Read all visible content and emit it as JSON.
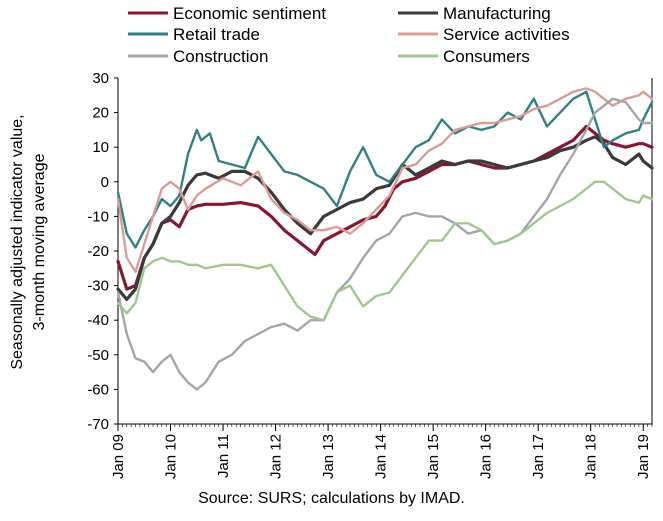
{
  "chart_data": {
    "type": "line",
    "ylabel": [
      "Seasonally adjusted indicator value,",
      "3-month moving average"
    ],
    "ylim": [
      -70,
      30
    ],
    "yticks": [
      -70,
      -60,
      -50,
      -40,
      -30,
      -20,
      -10,
      0,
      10,
      20,
      30
    ],
    "xlim": [
      "2009-01",
      "2019-03"
    ],
    "xticks": [
      {
        "x": "2009-01",
        "label": "Jan 09"
      },
      {
        "x": "2010-01",
        "label": "Jan 10"
      },
      {
        "x": "2011-01",
        "label": "Jan 11"
      },
      {
        "x": "2012-01",
        "label": "Jan 12"
      },
      {
        "x": "2013-01",
        "label": "Jan 13"
      },
      {
        "x": "2014-01",
        "label": "Jan 14"
      },
      {
        "x": "2015-01",
        "label": "Jan 15"
      },
      {
        "x": "2016-01",
        "label": "Jan 16"
      },
      {
        "x": "2017-01",
        "label": "Jan 17"
      },
      {
        "x": "2018-01",
        "label": "Jan 18"
      },
      {
        "x": "2019-01",
        "label": "Jan 19"
      }
    ],
    "grid": false,
    "legend": "top",
    "series": [
      {
        "name": "Economic sentiment",
        "color": "#8a1530",
        "width": 3.2,
        "points": [
          [
            "2009-01",
            -23
          ],
          [
            "2009-03",
            -31
          ],
          [
            "2009-05",
            -30
          ],
          [
            "2009-07",
            -22
          ],
          [
            "2009-09",
            -18
          ],
          [
            "2009-11",
            -12
          ],
          [
            "2010-01",
            -11
          ],
          [
            "2010-03",
            -13
          ],
          [
            "2010-05",
            -8
          ],
          [
            "2010-07",
            -7
          ],
          [
            "2010-09",
            -6.5
          ],
          [
            "2011-01",
            -6.5
          ],
          [
            "2011-05",
            -6
          ],
          [
            "2011-09",
            -7
          ],
          [
            "2011-12",
            -10
          ],
          [
            "2012-03",
            -14
          ],
          [
            "2012-06",
            -17
          ],
          [
            "2012-09",
            -20
          ],
          [
            "2012-10",
            -21
          ],
          [
            "2012-12",
            -17
          ],
          [
            "2013-03",
            -15
          ],
          [
            "2013-06",
            -13
          ],
          [
            "2013-09",
            -11
          ],
          [
            "2013-12",
            -10
          ],
          [
            "2014-02",
            -7
          ],
          [
            "2014-04",
            -2
          ],
          [
            "2014-06",
            0
          ],
          [
            "2014-09",
            1
          ],
          [
            "2014-12",
            3
          ],
          [
            "2015-03",
            5
          ],
          [
            "2015-06",
            5
          ],
          [
            "2015-09",
            6
          ],
          [
            "2015-12",
            5
          ],
          [
            "2016-03",
            4
          ],
          [
            "2016-06",
            4
          ],
          [
            "2016-09",
            5
          ],
          [
            "2016-12",
            6
          ],
          [
            "2017-03",
            8
          ],
          [
            "2017-06",
            10
          ],
          [
            "2017-09",
            12
          ],
          [
            "2017-12",
            16
          ],
          [
            "2018-02",
            14
          ],
          [
            "2018-04",
            12
          ],
          [
            "2018-06",
            11
          ],
          [
            "2018-09",
            10
          ],
          [
            "2018-12",
            11
          ],
          [
            "2019-01",
            11
          ],
          [
            "2019-03",
            10
          ]
        ]
      },
      {
        "name": "Manufacturing",
        "color": "#3a3a3a",
        "width": 3.2,
        "points": [
          [
            "2009-01",
            -31
          ],
          [
            "2009-03",
            -34
          ],
          [
            "2009-05",
            -31
          ],
          [
            "2009-07",
            -22
          ],
          [
            "2009-09",
            -18
          ],
          [
            "2009-11",
            -12
          ],
          [
            "2010-01",
            -10
          ],
          [
            "2010-03",
            -6
          ],
          [
            "2010-05",
            -1
          ],
          [
            "2010-07",
            2
          ],
          [
            "2010-09",
            2.5
          ],
          [
            "2010-12",
            1
          ],
          [
            "2011-03",
            3
          ],
          [
            "2011-06",
            3
          ],
          [
            "2011-09",
            1
          ],
          [
            "2011-12",
            -3
          ],
          [
            "2012-03",
            -8
          ],
          [
            "2012-06",
            -12
          ],
          [
            "2012-09",
            -15
          ],
          [
            "2012-12",
            -10
          ],
          [
            "2013-03",
            -8
          ],
          [
            "2013-06",
            -6
          ],
          [
            "2013-09",
            -5
          ],
          [
            "2013-12",
            -2
          ],
          [
            "2014-03",
            -1
          ],
          [
            "2014-06",
            5
          ],
          [
            "2014-09",
            2
          ],
          [
            "2014-12",
            4
          ],
          [
            "2015-03",
            6
          ],
          [
            "2015-06",
            5
          ],
          [
            "2015-09",
            6
          ],
          [
            "2015-12",
            6
          ],
          [
            "2016-03",
            5
          ],
          [
            "2016-06",
            4
          ],
          [
            "2016-09",
            5
          ],
          [
            "2016-12",
            6
          ],
          [
            "2017-03",
            7
          ],
          [
            "2017-06",
            9
          ],
          [
            "2017-09",
            10
          ],
          [
            "2017-12",
            12
          ],
          [
            "2018-02",
            13
          ],
          [
            "2018-04",
            11
          ],
          [
            "2018-06",
            7
          ],
          [
            "2018-09",
            5
          ],
          [
            "2018-12",
            8
          ],
          [
            "2019-01",
            6
          ],
          [
            "2019-03",
            4
          ]
        ]
      },
      {
        "name": "Retail trade",
        "color": "#2f8184",
        "width": 2.4,
        "points": [
          [
            "2009-01",
            -3
          ],
          [
            "2009-03",
            -15
          ],
          [
            "2009-05",
            -19
          ],
          [
            "2009-07",
            -14
          ],
          [
            "2009-09",
            -10
          ],
          [
            "2009-11",
            -5
          ],
          [
            "2010-01",
            -7
          ],
          [
            "2010-03",
            -4
          ],
          [
            "2010-05",
            8
          ],
          [
            "2010-07",
            15
          ],
          [
            "2010-08",
            12
          ],
          [
            "2010-10",
            14
          ],
          [
            "2010-12",
            6
          ],
          [
            "2011-03",
            5
          ],
          [
            "2011-06",
            4
          ],
          [
            "2011-09",
            13
          ],
          [
            "2011-12",
            8
          ],
          [
            "2012-03",
            3
          ],
          [
            "2012-06",
            2
          ],
          [
            "2012-09",
            0
          ],
          [
            "2012-12",
            -2
          ],
          [
            "2013-03",
            -7
          ],
          [
            "2013-06",
            3
          ],
          [
            "2013-09",
            10
          ],
          [
            "2013-12",
            2
          ],
          [
            "2014-03",
            0
          ],
          [
            "2014-06",
            5
          ],
          [
            "2014-09",
            10
          ],
          [
            "2014-12",
            12
          ],
          [
            "2015-03",
            18
          ],
          [
            "2015-06",
            14
          ],
          [
            "2015-09",
            16
          ],
          [
            "2015-12",
            15
          ],
          [
            "2016-03",
            16
          ],
          [
            "2016-06",
            20
          ],
          [
            "2016-09",
            18
          ],
          [
            "2016-12",
            24
          ],
          [
            "2017-03",
            16
          ],
          [
            "2017-06",
            20
          ],
          [
            "2017-09",
            24
          ],
          [
            "2017-12",
            26
          ],
          [
            "2018-02",
            18
          ],
          [
            "2018-04",
            10
          ],
          [
            "2018-06",
            12
          ],
          [
            "2018-09",
            14
          ],
          [
            "2018-12",
            15
          ],
          [
            "2019-01",
            18
          ],
          [
            "2019-03",
            23
          ]
        ]
      },
      {
        "name": "Service activities",
        "color": "#dc9b96",
        "width": 2.4,
        "points": [
          [
            "2009-01",
            -5
          ],
          [
            "2009-03",
            -22
          ],
          [
            "2009-05",
            -26
          ],
          [
            "2009-07",
            -18
          ],
          [
            "2009-09",
            -10
          ],
          [
            "2009-11",
            -2
          ],
          [
            "2010-01",
            0
          ],
          [
            "2010-03",
            -2
          ],
          [
            "2010-05",
            -8
          ],
          [
            "2010-07",
            -4
          ],
          [
            "2010-09",
            -2
          ],
          [
            "2011-01",
            1
          ],
          [
            "2011-05",
            -1
          ],
          [
            "2011-09",
            3
          ],
          [
            "2011-12",
            -5
          ],
          [
            "2012-03",
            -9
          ],
          [
            "2012-06",
            -11
          ],
          [
            "2012-09",
            -14
          ],
          [
            "2012-12",
            -14
          ],
          [
            "2013-03",
            -13
          ],
          [
            "2013-06",
            -15
          ],
          [
            "2013-09",
            -12
          ],
          [
            "2013-12",
            -8
          ],
          [
            "2014-03",
            -4
          ],
          [
            "2014-06",
            4
          ],
          [
            "2014-09",
            5
          ],
          [
            "2014-12",
            9
          ],
          [
            "2015-03",
            11
          ],
          [
            "2015-06",
            15
          ],
          [
            "2015-09",
            16
          ],
          [
            "2015-12",
            17
          ],
          [
            "2016-03",
            17
          ],
          [
            "2016-06",
            18
          ],
          [
            "2016-09",
            19
          ],
          [
            "2016-12",
            21
          ],
          [
            "2017-03",
            22
          ],
          [
            "2017-06",
            24
          ],
          [
            "2017-09",
            26
          ],
          [
            "2017-12",
            27
          ],
          [
            "2018-02",
            26
          ],
          [
            "2018-04",
            24
          ],
          [
            "2018-06",
            22
          ],
          [
            "2018-09",
            24
          ],
          [
            "2018-12",
            25
          ],
          [
            "2019-01",
            26
          ],
          [
            "2019-03",
            24
          ]
        ]
      },
      {
        "name": "Construction",
        "color": "#a5a5a5",
        "width": 2.4,
        "points": [
          [
            "2009-01",
            -32
          ],
          [
            "2009-03",
            -44
          ],
          [
            "2009-05",
            -51
          ],
          [
            "2009-07",
            -52
          ],
          [
            "2009-09",
            -55
          ],
          [
            "2009-11",
            -52
          ],
          [
            "2010-01",
            -50
          ],
          [
            "2010-03",
            -55
          ],
          [
            "2010-05",
            -58
          ],
          [
            "2010-07",
            -60
          ],
          [
            "2010-09",
            -58
          ],
          [
            "2010-12",
            -52
          ],
          [
            "2011-03",
            -50
          ],
          [
            "2011-06",
            -46
          ],
          [
            "2011-09",
            -44
          ],
          [
            "2011-12",
            -42
          ],
          [
            "2012-03",
            -41
          ],
          [
            "2012-06",
            -43
          ],
          [
            "2012-09",
            -40
          ],
          [
            "2012-12",
            -40
          ],
          [
            "2013-03",
            -32
          ],
          [
            "2013-06",
            -28
          ],
          [
            "2013-09",
            -22
          ],
          [
            "2013-12",
            -17
          ],
          [
            "2014-03",
            -15
          ],
          [
            "2014-06",
            -10
          ],
          [
            "2014-09",
            -9
          ],
          [
            "2014-12",
            -10
          ],
          [
            "2015-03",
            -10
          ],
          [
            "2015-06",
            -12
          ],
          [
            "2015-09",
            -15
          ],
          [
            "2015-12",
            -14
          ],
          [
            "2016-03",
            -18
          ],
          [
            "2016-06",
            -17
          ],
          [
            "2016-09",
            -15
          ],
          [
            "2016-12",
            -10
          ],
          [
            "2017-03",
            -5
          ],
          [
            "2017-06",
            2
          ],
          [
            "2017-09",
            8
          ],
          [
            "2017-12",
            15
          ],
          [
            "2018-02",
            20
          ],
          [
            "2018-04",
            22
          ],
          [
            "2018-06",
            24
          ],
          [
            "2018-09",
            23
          ],
          [
            "2018-12",
            18
          ],
          [
            "2019-01",
            17
          ],
          [
            "2019-03",
            17
          ]
        ]
      },
      {
        "name": "Consumers",
        "color": "#9ec88d",
        "width": 2.4,
        "points": [
          [
            "2009-01",
            -35
          ],
          [
            "2009-03",
            -38
          ],
          [
            "2009-05",
            -35
          ],
          [
            "2009-07",
            -25
          ],
          [
            "2009-09",
            -23
          ],
          [
            "2009-11",
            -22
          ],
          [
            "2010-01",
            -23
          ],
          [
            "2010-03",
            -23
          ],
          [
            "2010-05",
            -24
          ],
          [
            "2010-07",
            -24
          ],
          [
            "2010-09",
            -25
          ],
          [
            "2011-01",
            -24
          ],
          [
            "2011-05",
            -24
          ],
          [
            "2011-09",
            -25
          ],
          [
            "2011-12",
            -24
          ],
          [
            "2012-03",
            -30
          ],
          [
            "2012-06",
            -36
          ],
          [
            "2012-09",
            -39
          ],
          [
            "2012-12",
            -40
          ],
          [
            "2013-03",
            -32
          ],
          [
            "2013-06",
            -30
          ],
          [
            "2013-09",
            -36
          ],
          [
            "2013-12",
            -33
          ],
          [
            "2014-03",
            -32
          ],
          [
            "2014-06",
            -27
          ],
          [
            "2014-09",
            -22
          ],
          [
            "2014-12",
            -17
          ],
          [
            "2015-03",
            -17
          ],
          [
            "2015-06",
            -12
          ],
          [
            "2015-09",
            -12
          ],
          [
            "2015-12",
            -14
          ],
          [
            "2016-03",
            -18
          ],
          [
            "2016-06",
            -17
          ],
          [
            "2016-09",
            -15
          ],
          [
            "2016-12",
            -12
          ],
          [
            "2017-03",
            -9
          ],
          [
            "2017-06",
            -7
          ],
          [
            "2017-09",
            -5
          ],
          [
            "2017-12",
            -2
          ],
          [
            "2018-02",
            0
          ],
          [
            "2018-04",
            0
          ],
          [
            "2018-06",
            -2
          ],
          [
            "2018-09",
            -5
          ],
          [
            "2018-12",
            -6
          ],
          [
            "2019-01",
            -4
          ],
          [
            "2019-03",
            -5
          ]
        ]
      }
    ],
    "source": "Source: SURS; calculations by IMAD."
  }
}
